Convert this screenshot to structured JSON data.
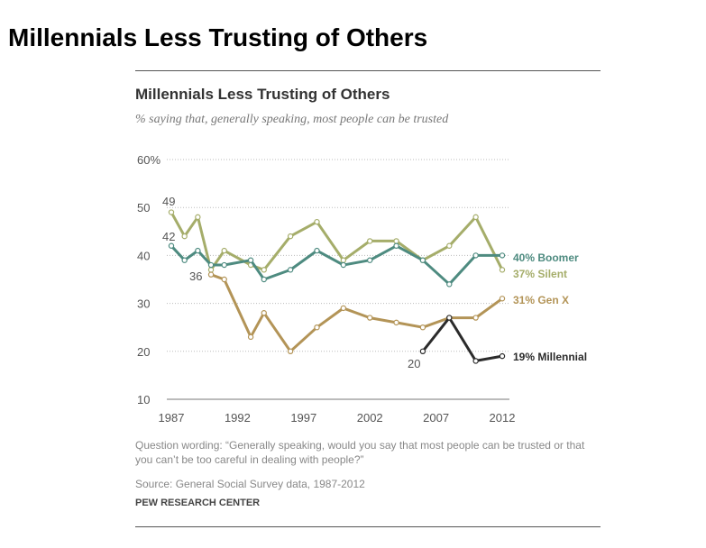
{
  "page": {
    "heading": "Millennials Less Trusting of Others"
  },
  "chart_data": {
    "type": "line",
    "title": "Millennials Less Trusting of Others",
    "subtitle": "% saying that, generally speaking, most people can be trusted",
    "xlabel": "",
    "ylabel": "",
    "xlim": [
      1987,
      2012
    ],
    "ylim": [
      10,
      60
    ],
    "y_ticks": [
      "60%",
      "50",
      "40",
      "30",
      "20",
      "10"
    ],
    "y_tick_values": [
      60,
      50,
      40,
      30,
      20,
      10
    ],
    "x_ticks": [
      "1987",
      "1992",
      "1997",
      "2002",
      "2007",
      "2012"
    ],
    "x_tick_values": [
      1987,
      1992,
      1997,
      2002,
      2007,
      2012
    ],
    "grid": "horizontal-dotted",
    "legend": "direct labels at right",
    "series": [
      {
        "name": "Silent",
        "label": "37% Silent",
        "color": "#a5ad6a",
        "x": [
          1987,
          1988,
          1989,
          1990,
          1991,
          1993,
          1994,
          1996,
          1998,
          2000,
          2002,
          2004,
          2006,
          2008,
          2010,
          2012
        ],
        "y": [
          49,
          44,
          48,
          37,
          41,
          38,
          37,
          44,
          47,
          39,
          43,
          43,
          39,
          42,
          48,
          37
        ]
      },
      {
        "name": "Boomer",
        "label": "40% Boomer",
        "color": "#4e8b80",
        "x": [
          1987,
          1988,
          1989,
          1990,
          1991,
          1993,
          1994,
          1996,
          1998,
          2000,
          2002,
          2004,
          2006,
          2008,
          2010,
          2012
        ],
        "y": [
          42,
          39,
          41,
          38,
          38,
          39,
          35,
          37,
          41,
          38,
          39,
          42,
          39,
          34,
          40,
          40
        ]
      },
      {
        "name": "Gen X",
        "label": "31% Gen X",
        "color": "#b39457",
        "x": [
          1990,
          1991,
          1993,
          1994,
          1996,
          1998,
          2000,
          2002,
          2004,
          2006,
          2008,
          2010,
          2012
        ],
        "y": [
          36,
          35,
          23,
          28,
          20,
          25,
          29,
          27,
          26,
          25,
          27,
          27,
          31
        ]
      },
      {
        "name": "Millennial",
        "label": "19% Millennial",
        "color": "#2b2b2b",
        "x": [
          2006,
          2008,
          2010,
          2012
        ],
        "y": [
          20,
          27,
          18,
          19
        ]
      }
    ],
    "data_labels": [
      {
        "text": "49",
        "x": 1987,
        "y": 49
      },
      {
        "text": "42",
        "x": 1987,
        "y": 42
      },
      {
        "text": "36",
        "x": 1990,
        "y": 36
      },
      {
        "text": "20",
        "x": 2006,
        "y": 20
      }
    ],
    "note": "Question wording: “Generally speaking, would you say that most people can be trusted or that you can’t be too careful in dealing with people?”",
    "source": "Source: General Social Survey data, 1987-2012",
    "credit": "PEW RESEARCH CENTER"
  }
}
